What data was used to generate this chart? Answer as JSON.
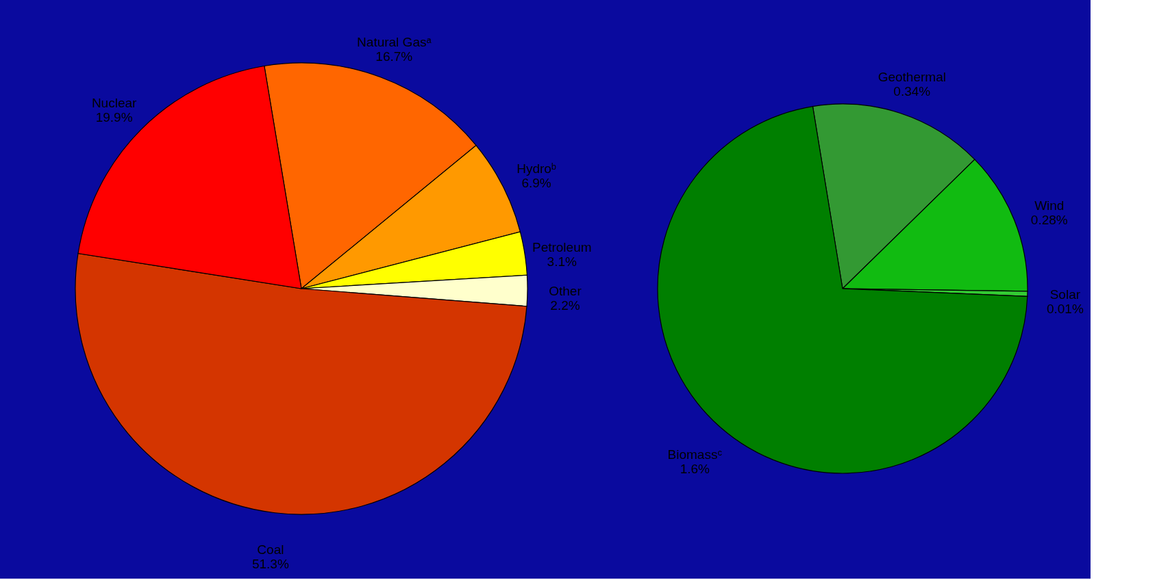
{
  "chart_data": [
    {
      "type": "pie",
      "categories": [
        "Natural Gasᵃ",
        "Hydroᵇ",
        "Petroleum",
        "Other",
        "Coal",
        "Nuclear"
      ],
      "values": [
        16.7,
        6.9,
        3.1,
        2.2,
        51.3,
        19.9
      ],
      "colors": [
        "#ff6600",
        "#ff9900",
        "#ffff00",
        "#ffffcc",
        "#d43500",
        "#ff0000"
      ],
      "value_labels": [
        "16.7%",
        "6.9%",
        "3.1%",
        "2.2%",
        "51.3%",
        "19.9%"
      ]
    },
    {
      "type": "pie",
      "categories": [
        "Geothermal",
        "Wind",
        "Solar",
        "Biomassᶜ"
      ],
      "values": [
        0.34,
        0.28,
        0.01,
        1.6
      ],
      "colors": [
        "#339933",
        "#11bb11",
        "#33cc33",
        "#007f00"
      ],
      "value_labels": [
        "0.34%",
        "0.28%",
        "0.01%",
        "1.6%"
      ]
    }
  ]
}
